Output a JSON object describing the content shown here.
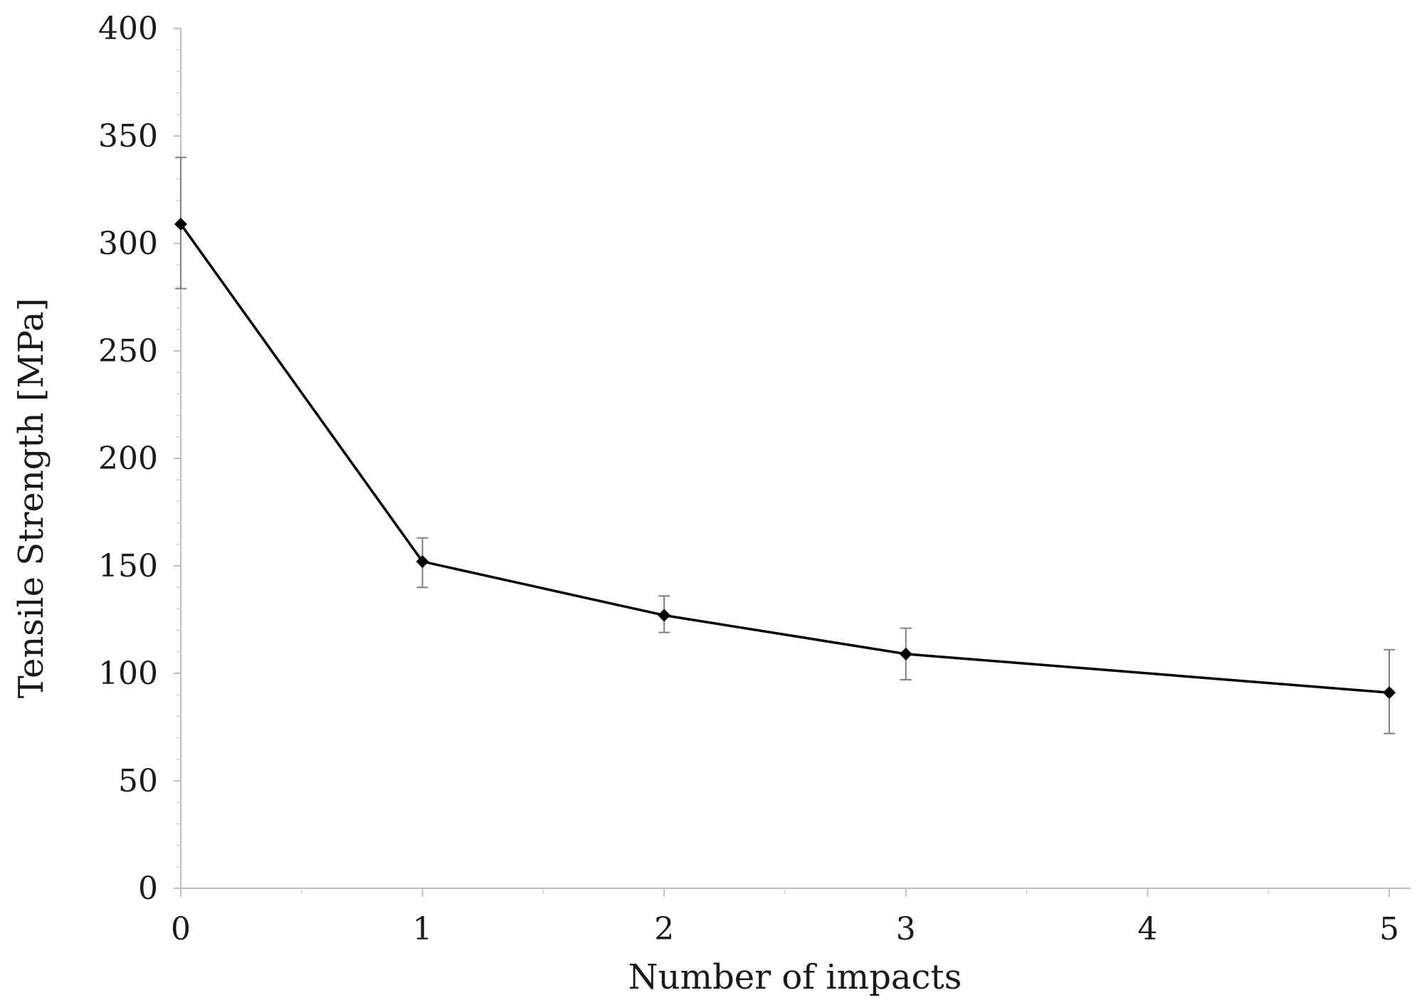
{
  "chart_data": {
    "type": "line",
    "title": "",
    "xlabel": "Number of impacts",
    "ylabel": "Tensile Strength [MPa]",
    "xlim": [
      0,
      5
    ],
    "ylim": [
      0,
      400
    ],
    "x_ticks": [
      "0",
      "1",
      "2",
      "3",
      "4",
      "5"
    ],
    "y_ticks": [
      "0",
      "50",
      "100",
      "150",
      "200",
      "250",
      "300",
      "350",
      "400"
    ],
    "grid": false,
    "legend": "none",
    "series": [
      {
        "x": [
          0,
          1,
          2,
          3,
          5
        ],
        "y": [
          309,
          152,
          127,
          109,
          91
        ],
        "error_low": [
          279,
          140,
          119,
          97,
          72
        ],
        "error_high": [
          340,
          163,
          136,
          121,
          111
        ],
        "color": "#000000",
        "marker": "diamond",
        "errorbar_color": "#808080"
      }
    ],
    "colors": {
      "line": "#000000",
      "axis": "#bfbfbf",
      "errorbar": "#808080"
    }
  }
}
